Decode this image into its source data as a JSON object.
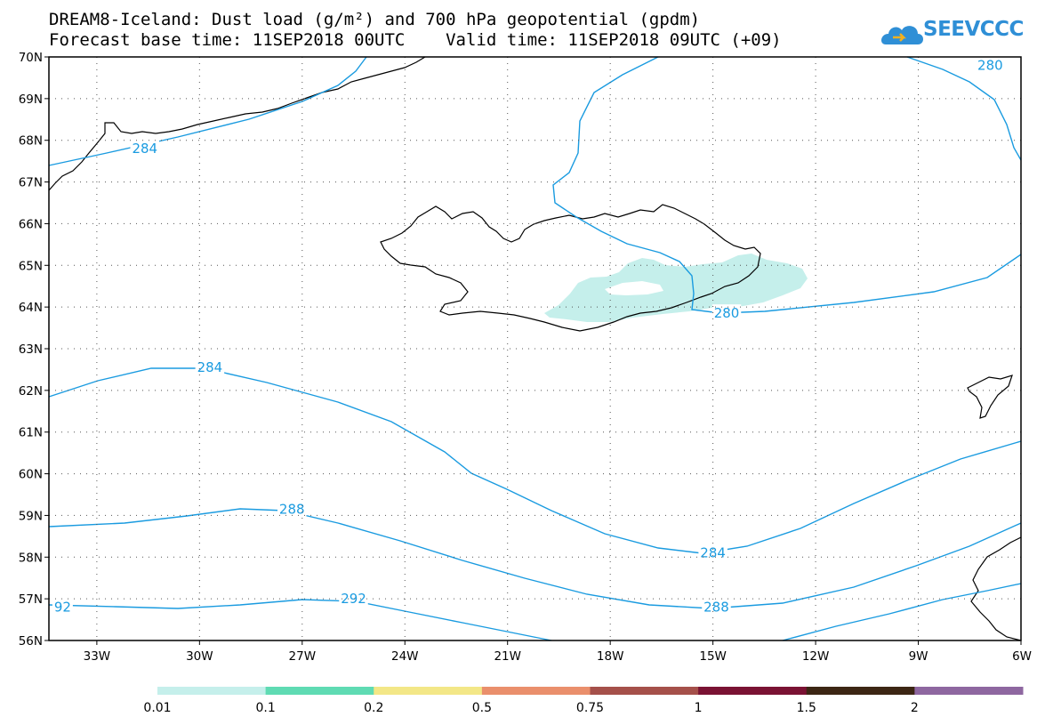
{
  "title": {
    "line1": "DREAM8-Iceland: Dust load (g/m²) and 700 hPa geopotential (gpdm)",
    "line2": "Forecast base time: 11SEP2018 00UTC    Valid time: 11SEP2018 09UTC (+09)"
  },
  "logo": {
    "text": "SEEVCCC",
    "icon": "cloud-logo-icon"
  },
  "axes": {
    "lat_labels": [
      "70N",
      "69N",
      "68N",
      "67N",
      "66N",
      "65N",
      "64N",
      "63N",
      "62N",
      "61N",
      "60N",
      "59N",
      "58N",
      "57N",
      "56N"
    ],
    "lat_values": [
      70,
      69,
      68,
      67,
      66,
      65,
      64,
      63,
      62,
      61,
      60,
      59,
      58,
      57,
      56
    ],
    "lon_labels": [
      "33W",
      "30W",
      "27W",
      "24W",
      "21W",
      "18W",
      "15W",
      "12W",
      "9W",
      "6W"
    ],
    "lon_values": [
      -33,
      -30,
      -27,
      -24,
      -21,
      -18,
      -15,
      -12,
      -9,
      -6
    ],
    "lon_range": [
      -34.4,
      -6
    ],
    "lat_range": [
      56,
      70
    ],
    "grid": "dotted"
  },
  "contours": {
    "color": "#1a9be0",
    "labels": [
      {
        "text": "284",
        "lon": -31.6,
        "lat": 67.8
      },
      {
        "text": "280",
        "lon": -6.9,
        "lat": 69.8
      },
      {
        "text": "280",
        "lon": -14.6,
        "lat": 63.85
      },
      {
        "text": "284",
        "lon": -29.7,
        "lat": 62.55
      },
      {
        "text": "288",
        "lon": -27.3,
        "lat": 59.15
      },
      {
        "text": "284",
        "lon": -15.0,
        "lat": 58.1
      },
      {
        "text": "92",
        "lon": -34.0,
        "lat": 56.8
      },
      {
        "text": "292",
        "lon": -25.5,
        "lat": 57.0
      },
      {
        "text": "288",
        "lon": -14.9,
        "lat": 56.8
      }
    ]
  },
  "colorbar": {
    "colors": [
      "#c5efeb",
      "#5fdbb3",
      "#f3e787",
      "#ea8f6c",
      "#a5504a",
      "#7a1233",
      "#3c2614",
      "#8e67a0"
    ],
    "labels": [
      "0.01",
      "0.1",
      "0.2",
      "0.5",
      "0.75",
      "1",
      "1.5",
      "2"
    ]
  },
  "dust_color": "#c5efeb"
}
